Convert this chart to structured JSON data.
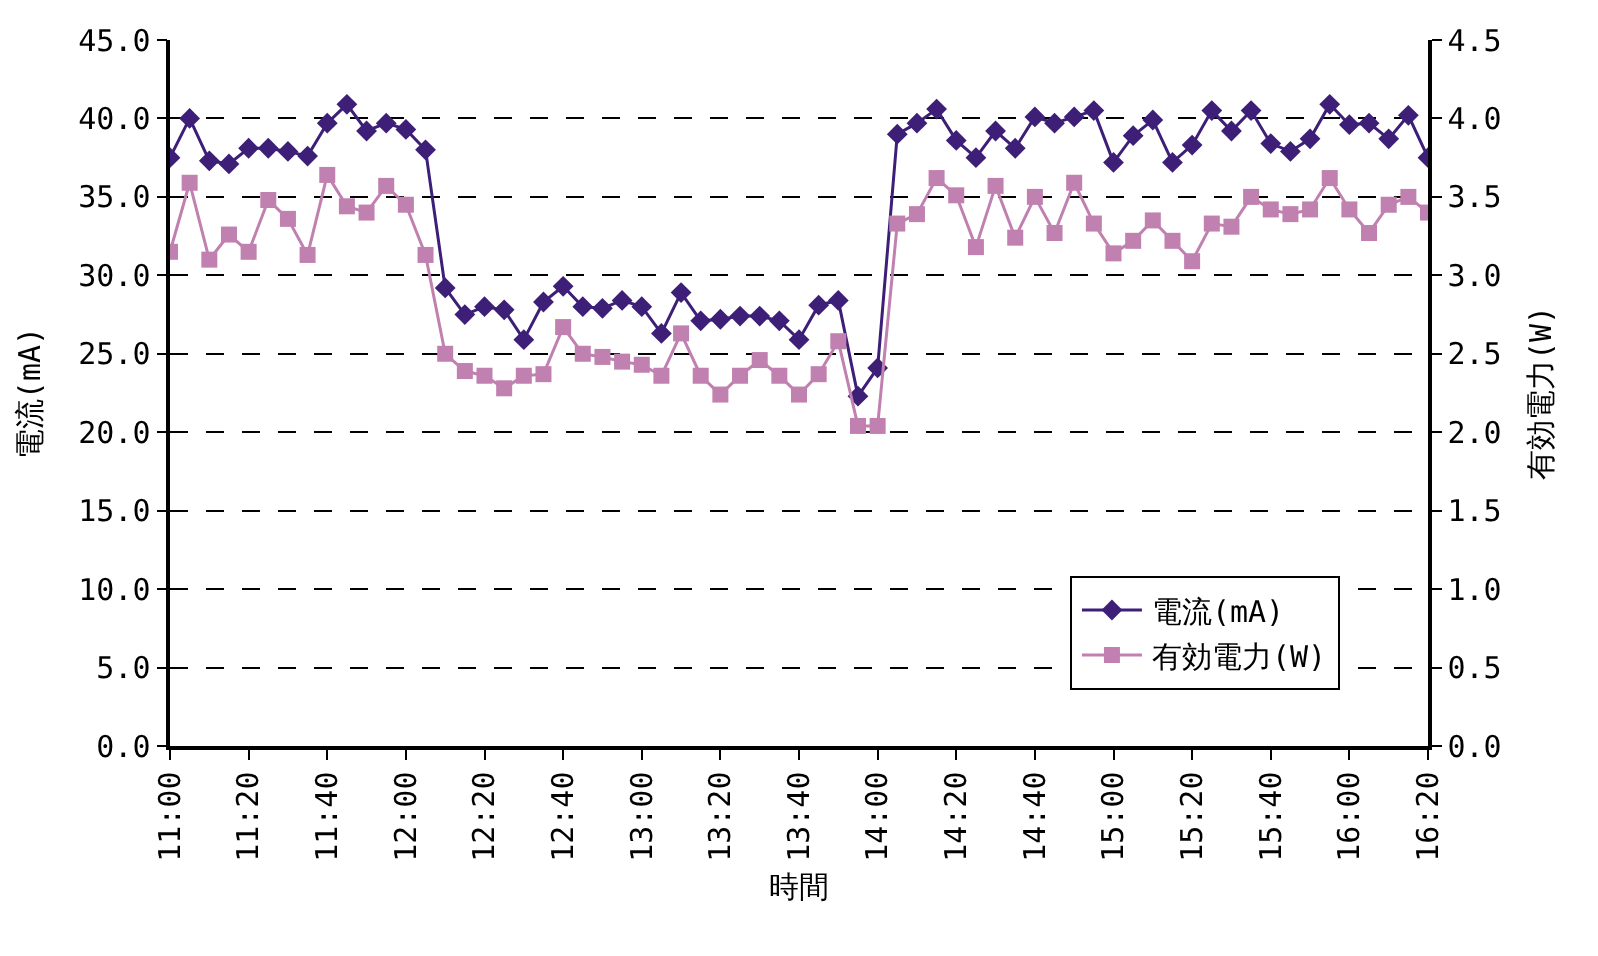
{
  "chart_data": {
    "type": "line",
    "xlabel": "時間",
    "ylabel": "電流(mA)",
    "y2label": "有効電力(W)",
    "x": [
      11,
      11.0833,
      11.1667,
      11.25,
      11.3333,
      11.4167,
      11.5,
      11.5833,
      11.6667,
      11.75,
      11.8333,
      11.9167,
      12,
      12.0833,
      12.1667,
      12.25,
      12.3333,
      12.4167,
      12.5,
      12.5833,
      12.6667,
      12.75,
      12.8333,
      12.9167,
      13,
      13.0833,
      13.1667,
      13.25,
      13.3333,
      13.4167,
      13.5,
      13.5833,
      13.6667,
      13.75,
      13.8333,
      13.9167,
      14,
      14.0833,
      14.1667,
      14.25,
      14.3333,
      14.4167,
      14.5,
      14.5833,
      14.6667,
      14.75,
      14.8333,
      14.9167,
      15,
      15.0833,
      15.1667,
      15.25,
      15.3333,
      15.4167,
      15.5,
      15.5833,
      15.6667,
      15.75,
      15.8333,
      15.9167,
      16,
      16.0833,
      16.1667,
      16.25,
      16.3333
    ],
    "series": [
      {
        "name": "電流(mA)",
        "color": "#3d1f78",
        "marker": "diamond",
        "values": [
          37.5,
          40.0,
          37.3,
          37.1,
          38.1,
          38.1,
          37.9,
          37.6,
          39.7,
          40.9,
          39.2,
          39.7,
          39.3,
          38.0,
          29.2,
          27.5,
          28.0,
          27.8,
          25.9,
          28.3,
          29.3,
          28.0,
          27.9,
          28.4,
          28.0,
          26.3,
          28.9,
          27.1,
          27.2,
          27.4,
          27.4,
          27.1,
          25.9,
          28.1,
          28.4,
          22.3,
          24.1,
          39.0,
          39.7,
          40.6,
          38.6,
          37.5,
          39.2,
          38.1,
          40.1,
          39.7,
          40.1,
          40.5,
          37.2,
          38.9,
          39.9,
          37.2,
          38.3,
          40.5,
          39.2,
          40.5,
          38.4,
          37.9,
          38.7,
          40.9,
          39.6,
          39.7,
          38.7,
          40.2,
          37.5
        ]
      },
      {
        "name": "有効電力(W)",
        "color": "#c080b0",
        "marker": "square",
        "axis": "y2",
        "values": [
          3.15,
          3.59,
          3.1,
          3.26,
          3.15,
          3.48,
          3.36,
          3.13,
          3.64,
          3.44,
          3.4,
          3.57,
          3.45,
          3.13,
          2.5,
          2.39,
          2.36,
          2.28,
          2.36,
          2.37,
          2.67,
          2.5,
          2.48,
          2.45,
          2.43,
          2.36,
          2.63,
          2.36,
          2.24,
          2.36,
          2.46,
          2.36,
          2.24,
          2.37,
          2.58,
          2.04,
          2.04,
          3.33,
          3.39,
          3.62,
          3.51,
          3.18,
          3.57,
          3.24,
          3.5,
          3.27,
          3.59,
          3.33,
          3.14,
          3.22,
          3.35,
          3.22,
          3.09,
          3.33,
          3.31,
          3.5,
          3.42,
          3.39,
          3.42,
          3.62,
          3.42,
          3.27,
          3.45,
          3.5,
          3.4
        ]
      }
    ],
    "xlim": [
      11,
      16.3333
    ],
    "xticks": [
      {
        "value": 11,
        "label": "11:00"
      },
      {
        "value": 11.3333,
        "label": "11:20"
      },
      {
        "value": 11.6667,
        "label": "11:40"
      },
      {
        "value": 12,
        "label": "12:00"
      },
      {
        "value": 12.3333,
        "label": "12:20"
      },
      {
        "value": 12.6667,
        "label": "12:40"
      },
      {
        "value": 13,
        "label": "13:00"
      },
      {
        "value": 13.3333,
        "label": "13:20"
      },
      {
        "value": 13.6667,
        "label": "13:40"
      },
      {
        "value": 14,
        "label": "14:00"
      },
      {
        "value": 14.3333,
        "label": "14:20"
      },
      {
        "value": 14.6667,
        "label": "14:40"
      },
      {
        "value": 15,
        "label": "15:00"
      },
      {
        "value": 15.3333,
        "label": "15:20"
      },
      {
        "value": 15.6667,
        "label": "15:40"
      },
      {
        "value": 16,
        "label": "16:00"
      },
      {
        "value": 16.3333,
        "label": "16:20"
      }
    ],
    "ylim": [
      0,
      45
    ],
    "yticks": [
      {
        "value": 0,
        "label": "0.0"
      },
      {
        "value": 5,
        "label": "5.0"
      },
      {
        "value": 10,
        "label": "10.0"
      },
      {
        "value": 15,
        "label": "15.0"
      },
      {
        "value": 20,
        "label": "20.0"
      },
      {
        "value": 25,
        "label": "25.0"
      },
      {
        "value": 30,
        "label": "30.0"
      },
      {
        "value": 35,
        "label": "35.0"
      },
      {
        "value": 40,
        "label": "40.0"
      },
      {
        "value": 45,
        "label": "45.0"
      }
    ],
    "y2lim": [
      0,
      4.5
    ],
    "y2ticks": [
      {
        "value": 0,
        "label": "0.0"
      },
      {
        "value": 0.5,
        "label": "0.5"
      },
      {
        "value": 1,
        "label": "1.0"
      },
      {
        "value": 1.5,
        "label": "1.5"
      },
      {
        "value": 2,
        "label": "2.0"
      },
      {
        "value": 2.5,
        "label": "2.5"
      },
      {
        "value": 3,
        "label": "3.0"
      },
      {
        "value": 3.5,
        "label": "3.5"
      },
      {
        "value": 4,
        "label": "4.0"
      },
      {
        "value": 4.5,
        "label": "4.5"
      }
    ],
    "grid": "y",
    "legend": "bottom right",
    "line_style": "solid"
  }
}
